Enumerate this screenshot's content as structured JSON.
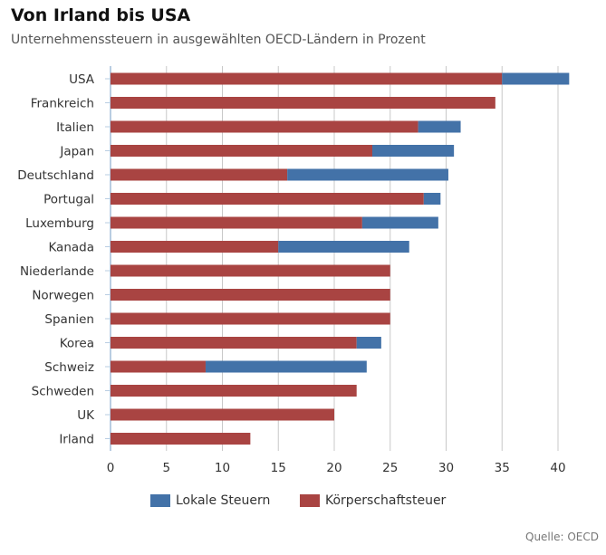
{
  "title": "Von Irland bis USA",
  "subtitle": "Unternehmenssteuern in ausgewählten OECD-Ländern in Prozent",
  "source": "Quelle: OECD",
  "colors": {
    "local": "#4372a8",
    "corporate": "#a94442",
    "grid": "#c8c8c8",
    "axis": "#b9cde2"
  },
  "chart_data": {
    "type": "bar",
    "orientation": "horizontal",
    "stacked": true,
    "categories": [
      "USA",
      "Frankreich",
      "Italien",
      "Japan",
      "Deutschland",
      "Portugal",
      "Luxemburg",
      "Kanada",
      "Niederlande",
      "Norwegen",
      "Spanien",
      "Korea",
      "Schweiz",
      "Schweden",
      "UK",
      "Irland"
    ],
    "series": [
      {
        "name": "Körperschaftsteuer",
        "values": [
          35,
          34.4,
          27.5,
          23.4,
          15.8,
          28,
          22.5,
          15,
          25,
          25,
          25,
          22,
          8.5,
          22,
          20,
          12.5
        ]
      },
      {
        "name": "Lokale Steuern",
        "values": [
          6,
          0,
          3.8,
          7.3,
          14.4,
          1.5,
          6.8,
          11.7,
          0,
          0,
          0,
          2.2,
          14.4,
          0,
          0,
          0
        ]
      }
    ],
    "x_ticks": [
      "0",
      "5",
      "10",
      "15",
      "20",
      "25",
      "30",
      "35",
      "40"
    ],
    "xlim": [
      0,
      42
    ],
    "legend": [
      "Lokale Steuern",
      "Körperschaftsteuer"
    ],
    "legend_position": "bottom",
    "grid": true
  }
}
